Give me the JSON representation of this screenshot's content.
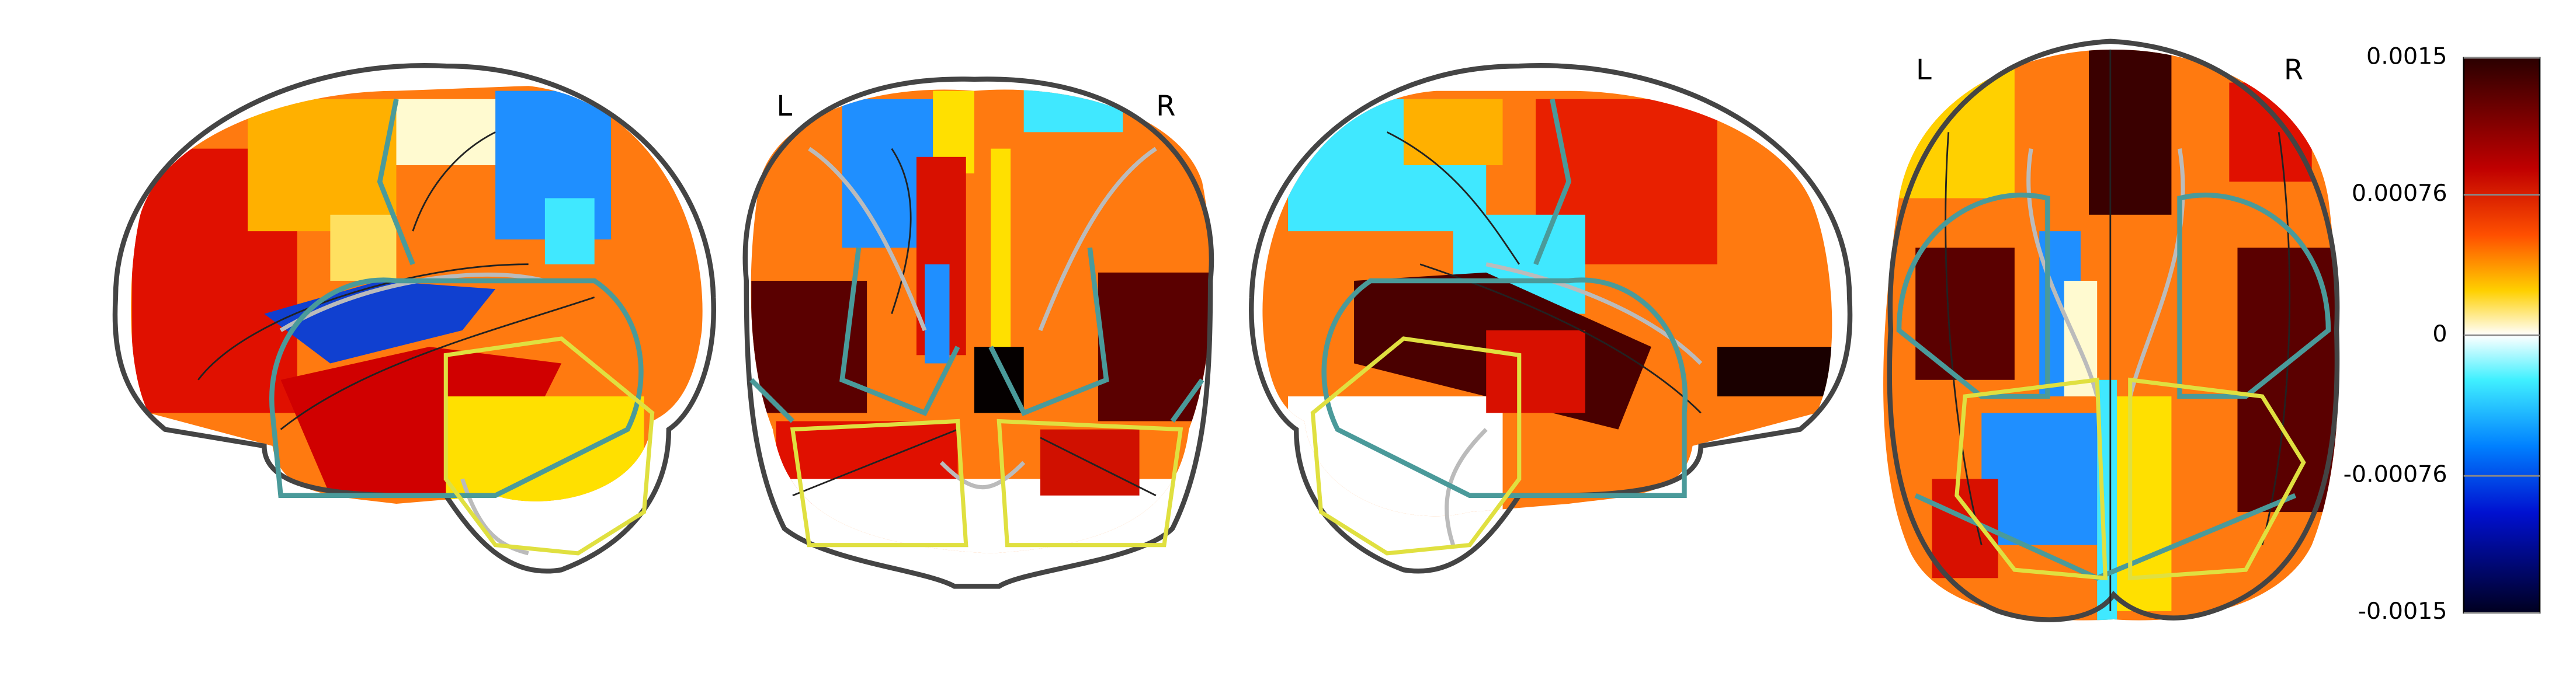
{
  "labels": {
    "coronal_left": "L",
    "coronal_right": "R",
    "axial_left": "L",
    "axial_right": "R"
  },
  "colorbar": {
    "vlim": [
      -0.0015,
      0.0015
    ],
    "ticks": [
      0.0015,
      0.00076,
      0,
      -0.00076,
      -0.0015
    ]
  }
}
